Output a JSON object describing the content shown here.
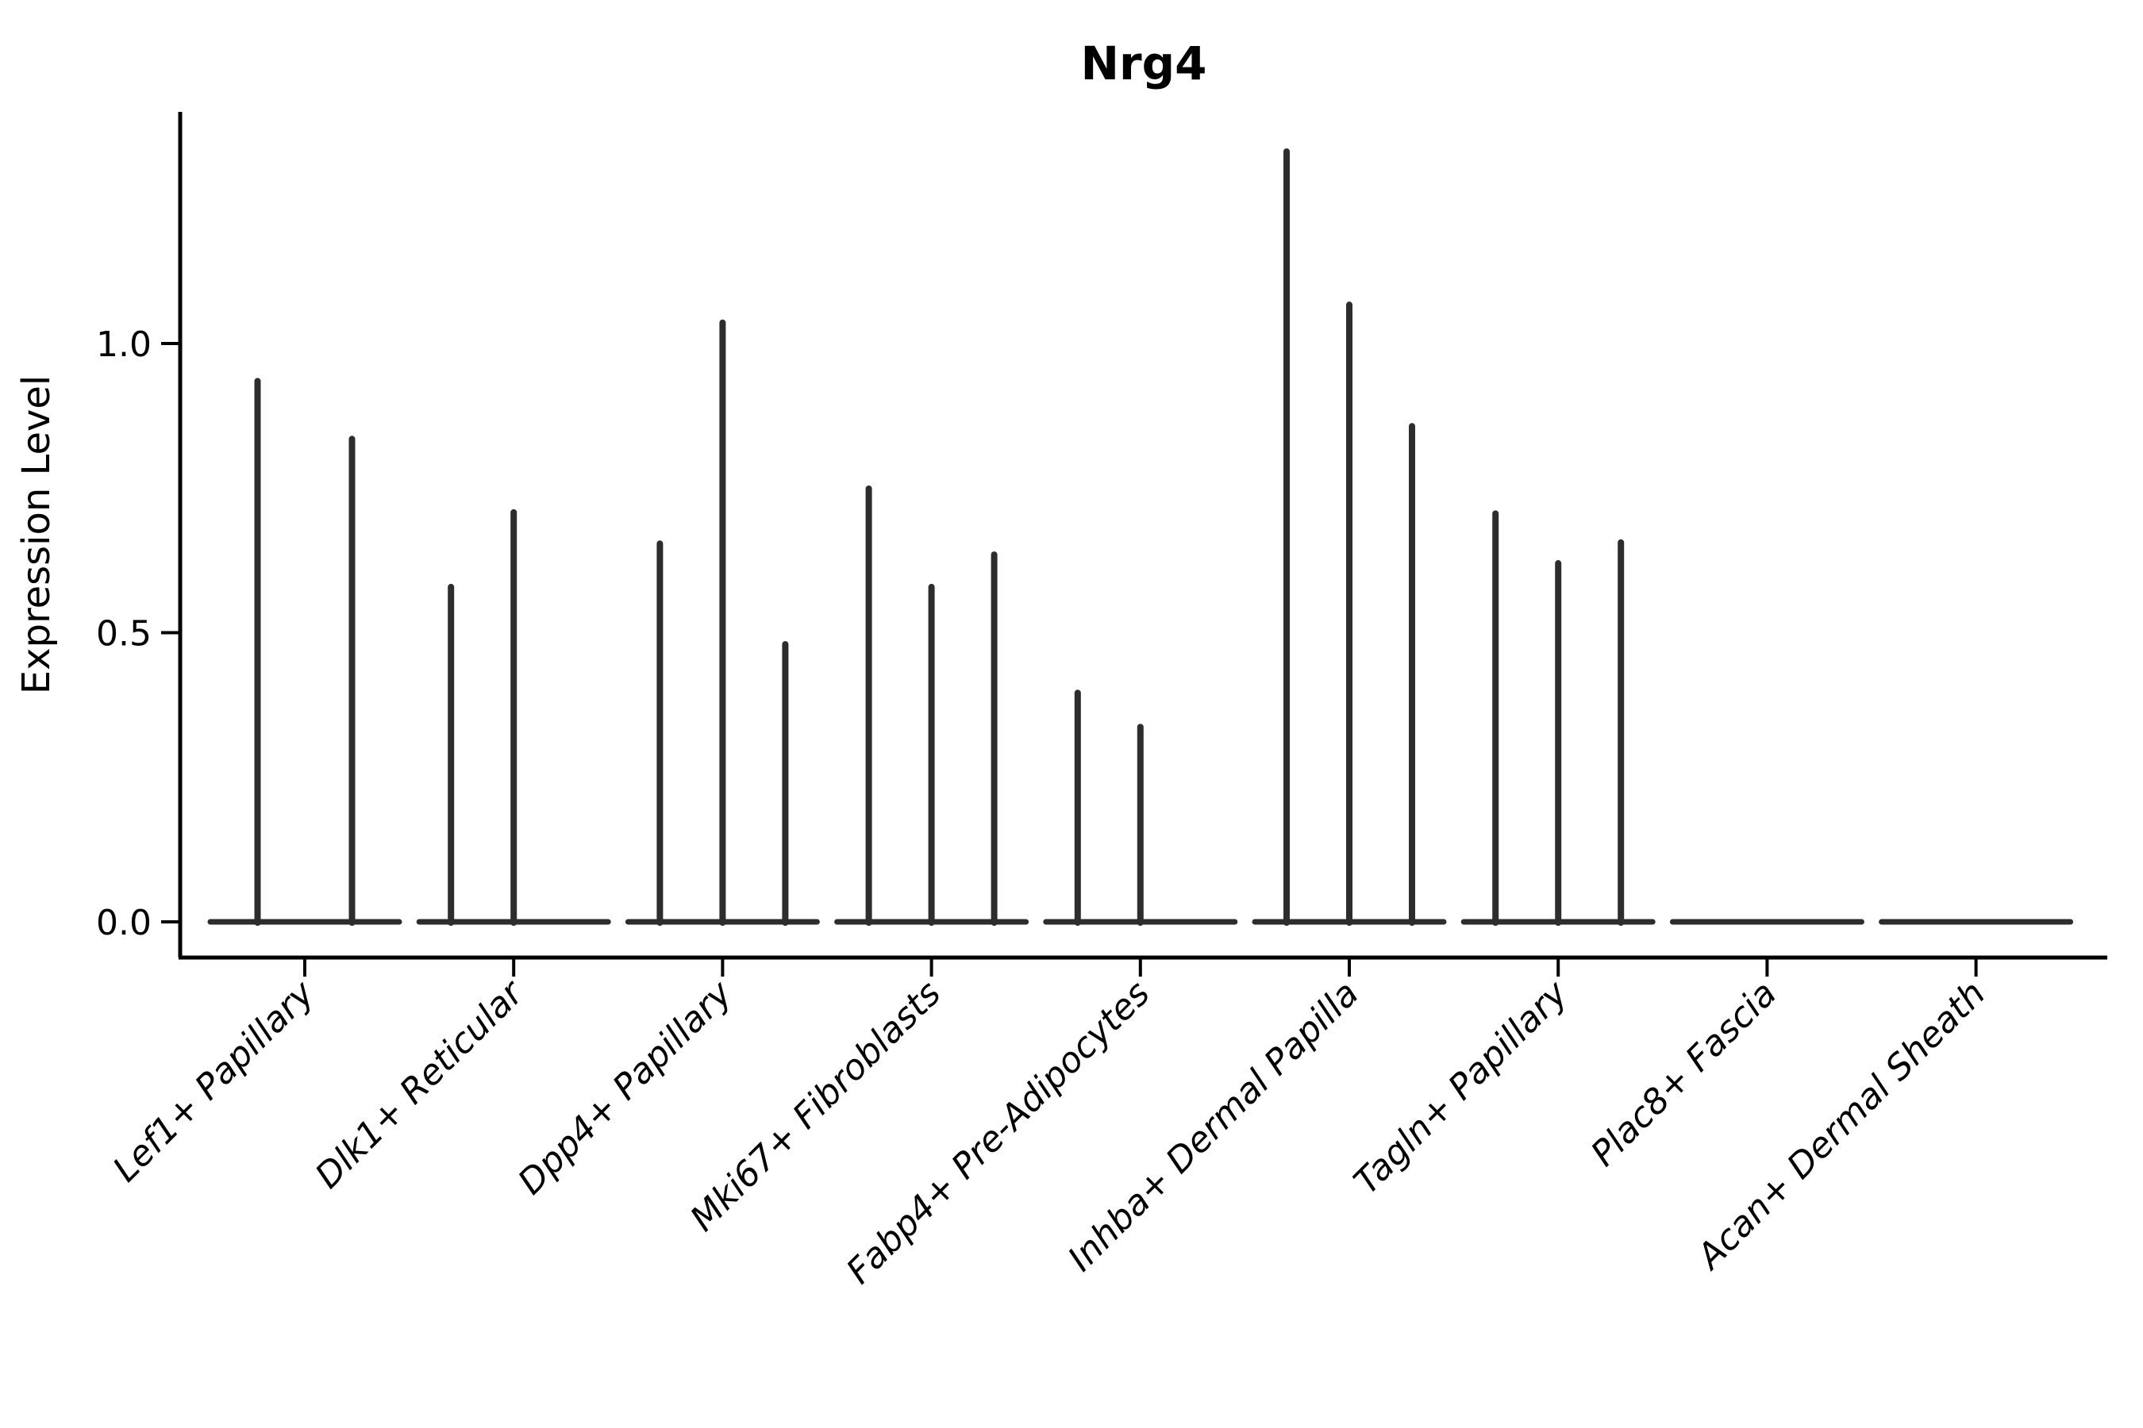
{
  "chart_data": {
    "type": "violin",
    "title": "Nrg4",
    "ylabel": "Expression Level",
    "xlabel": "",
    "yticks": [
      "0.0",
      "0.5",
      "1.0"
    ],
    "ytick_values": [
      0.0,
      0.5,
      1.0
    ],
    "ylim": [
      -0.06,
      1.4
    ],
    "legend": "none",
    "grid": false,
    "categories": [
      "Lef1+ Papillary",
      "Dlk1+ Reticular",
      "Dpp4+ Papillary",
      "Mki67+ Fibroblasts",
      "Fabp4+ Pre-Adipocytes",
      "Inhba+ Dermal Papilla",
      "Tagln+ Papillary",
      "Plac8+ Fascia",
      "Acan+ Dermal Sheath"
    ],
    "groups": [
      {
        "category": "Lef1+ Papillary",
        "violin_maxima": [
          0.935,
          0.835
        ]
      },
      {
        "category": "Dlk1+ Reticular",
        "violin_maxima": [
          0.579,
          0.708,
          0
        ]
      },
      {
        "category": "Dpp4+ Papillary",
        "violin_maxima": [
          0.654,
          1.036,
          0.48
        ]
      },
      {
        "category": "Mki67+ Fibroblasts",
        "violin_maxima": [
          0.749,
          0.579,
          0.635
        ]
      },
      {
        "category": "Fabp4+ Pre-Adipocytes",
        "violin_maxima": [
          0.396,
          0.337,
          0
        ]
      },
      {
        "category": "Inhba+ Dermal Papilla",
        "violin_maxima": [
          1.332,
          1.067,
          0.857
        ]
      },
      {
        "category": "Tagln+ Papillary",
        "violin_maxima": [
          0.706,
          0.62,
          0.656
        ]
      },
      {
        "category": "Plac8+ Fascia",
        "violin_maxima": [
          0,
          0,
          0
        ]
      },
      {
        "category": "Acan+ Dermal Sheath",
        "violin_maxima": [
          0,
          0,
          0
        ]
      }
    ],
    "colors": {
      "violin": "#2d2d2d",
      "axis": "#000000",
      "text": "#000000",
      "background": "#ffffff"
    }
  }
}
